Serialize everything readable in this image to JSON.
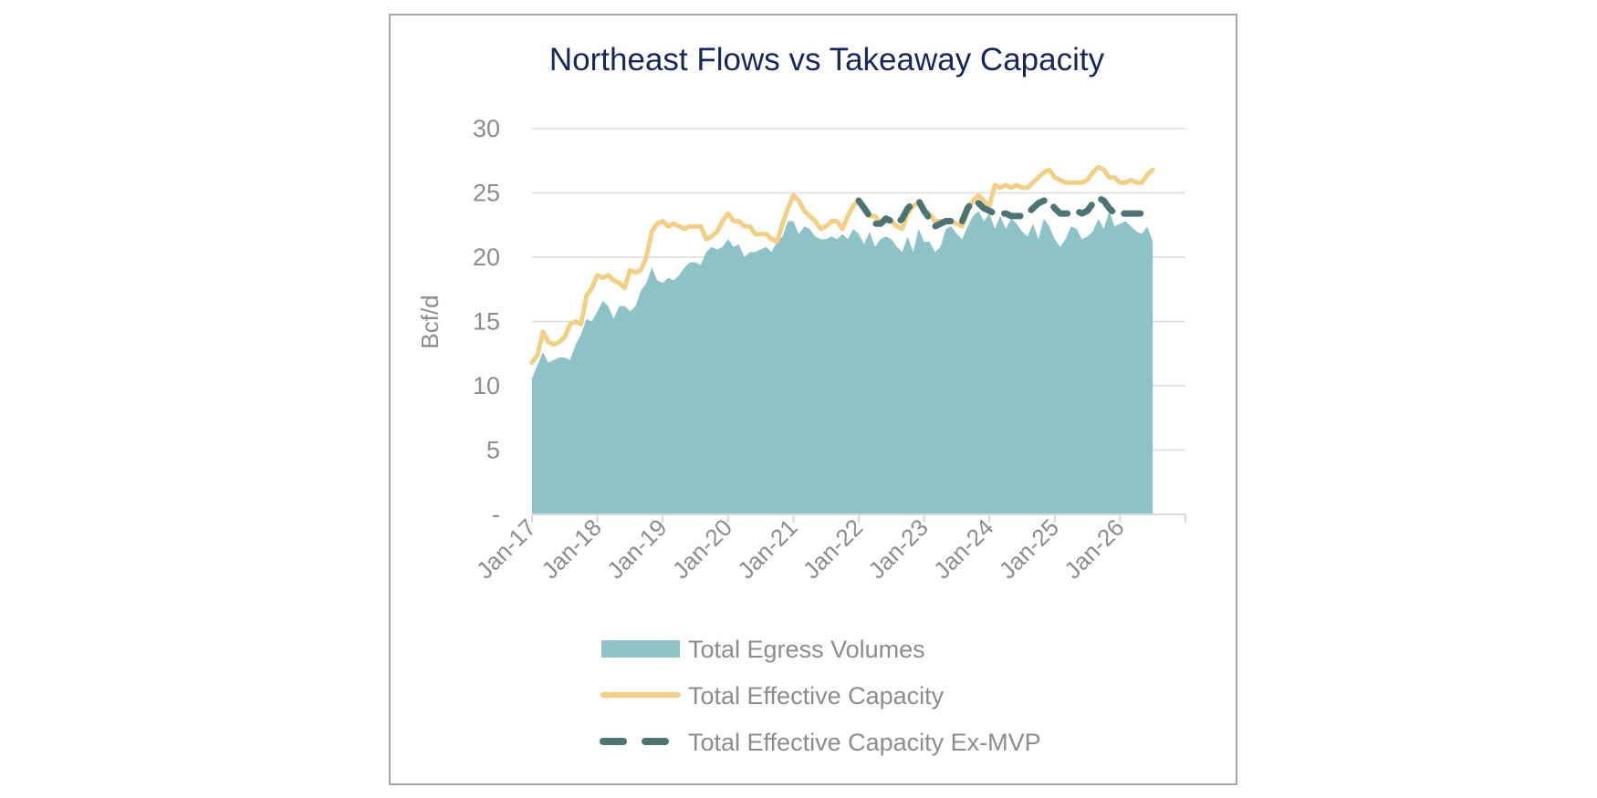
{
  "chart_data": {
    "type": "area",
    "title": "Northeast Flows vs Takeaway Capacity",
    "ylabel": "Bcf/d",
    "xlabel": "",
    "ylim": [
      0,
      30
    ],
    "xlim": [
      "2017-01",
      "2027-01"
    ],
    "yticks": [
      0,
      5,
      10,
      15,
      20,
      25,
      30
    ],
    "ytick_labels": [
      "-",
      "5",
      "10",
      "15",
      "20",
      "25",
      "30"
    ],
    "xtick_labels": [
      "Jan-17",
      "Jan-18",
      "Jan-19",
      "Jan-20",
      "Jan-21",
      "Jan-22",
      "Jan-23",
      "Jan-24",
      "Jan-25",
      "Jan-26"
    ],
    "grid": true,
    "legend_position": "bottom",
    "series": [
      {
        "name": "Total Egress Volumes",
        "type": "area",
        "color": "#8DC3C7",
        "points": [
          [
            "2017-01",
            10.6
          ],
          [
            "2017-02",
            11.6
          ],
          [
            "2017-03",
            12.6
          ],
          [
            "2017-04",
            11.8
          ],
          [
            "2017-05",
            12.0
          ],
          [
            "2017-06",
            12.2
          ],
          [
            "2017-07",
            12.2
          ],
          [
            "2017-08",
            12.0
          ],
          [
            "2017-09",
            13.2
          ],
          [
            "2017-10",
            14.0
          ],
          [
            "2017-11",
            15.2
          ],
          [
            "2017-12",
            15.0
          ],
          [
            "2018-01",
            15.8
          ],
          [
            "2018-02",
            16.6
          ],
          [
            "2018-03",
            16.2
          ],
          [
            "2018-04",
            15.2
          ],
          [
            "2018-05",
            16.2
          ],
          [
            "2018-06",
            16.2
          ],
          [
            "2018-07",
            15.8
          ],
          [
            "2018-08",
            16.2
          ],
          [
            "2018-09",
            17.4
          ],
          [
            "2018-10",
            18.0
          ],
          [
            "2018-11",
            19.2
          ],
          [
            "2018-12",
            18.2
          ],
          [
            "2019-01",
            18.0
          ],
          [
            "2019-02",
            18.4
          ],
          [
            "2019-03",
            18.2
          ],
          [
            "2019-04",
            18.6
          ],
          [
            "2019-05",
            19.2
          ],
          [
            "2019-06",
            19.6
          ],
          [
            "2019-07",
            19.6
          ],
          [
            "2019-08",
            19.4
          ],
          [
            "2019-09",
            20.4
          ],
          [
            "2019-10",
            20.8
          ],
          [
            "2019-11",
            20.6
          ],
          [
            "2019-12",
            20.8
          ],
          [
            "2020-01",
            21.4
          ],
          [
            "2020-02",
            20.8
          ],
          [
            "2020-03",
            21.0
          ],
          [
            "2020-04",
            20.0
          ],
          [
            "2020-05",
            20.4
          ],
          [
            "2020-06",
            20.4
          ],
          [
            "2020-07",
            20.6
          ],
          [
            "2020-08",
            20.8
          ],
          [
            "2020-09",
            20.4
          ],
          [
            "2020-10",
            21.2
          ],
          [
            "2020-11",
            21.6
          ],
          [
            "2020-12",
            22.8
          ],
          [
            "2021-01",
            22.8
          ],
          [
            "2021-02",
            21.8
          ],
          [
            "2021-03",
            22.4
          ],
          [
            "2021-04",
            22.2
          ],
          [
            "2021-05",
            21.6
          ],
          [
            "2021-06",
            21.4
          ],
          [
            "2021-07",
            21.4
          ],
          [
            "2021-08",
            21.6
          ],
          [
            "2021-09",
            21.4
          ],
          [
            "2021-10",
            21.8
          ],
          [
            "2021-11",
            21.4
          ],
          [
            "2021-12",
            22.2
          ],
          [
            "2022-01",
            21.8
          ],
          [
            "2022-02",
            21.0
          ],
          [
            "2022-03",
            22.0
          ],
          [
            "2022-04",
            20.8
          ],
          [
            "2022-05",
            21.4
          ],
          [
            "2022-06",
            21.6
          ],
          [
            "2022-07",
            21.4
          ],
          [
            "2022-08",
            20.8
          ],
          [
            "2022-09",
            20.4
          ],
          [
            "2022-10",
            21.6
          ],
          [
            "2022-11",
            20.4
          ],
          [
            "2022-12",
            22.2
          ],
          [
            "2023-01",
            21.2
          ],
          [
            "2023-02",
            21.2
          ],
          [
            "2023-03",
            20.4
          ],
          [
            "2023-04",
            20.8
          ],
          [
            "2023-05",
            22.2
          ],
          [
            "2023-06",
            22.4
          ],
          [
            "2023-07",
            21.8
          ],
          [
            "2023-08",
            21.4
          ],
          [
            "2023-09",
            22.4
          ],
          [
            "2023-10",
            23.2
          ],
          [
            "2023-11",
            23.6
          ],
          [
            "2023-12",
            22.8
          ],
          [
            "2024-01",
            23.4
          ],
          [
            "2024-02",
            22.2
          ],
          [
            "2024-03",
            23.2
          ],
          [
            "2024-04",
            22.2
          ],
          [
            "2024-05",
            23.0
          ],
          [
            "2024-06",
            22.6
          ],
          [
            "2024-07",
            22.0
          ],
          [
            "2024-08",
            21.6
          ],
          [
            "2024-09",
            22.6
          ],
          [
            "2024-10",
            21.4
          ],
          [
            "2024-11",
            23.0
          ],
          [
            "2024-12",
            22.4
          ],
          [
            "2025-01",
            21.4
          ],
          [
            "2025-02",
            20.8
          ],
          [
            "2025-03",
            21.4
          ],
          [
            "2025-04",
            22.4
          ],
          [
            "2025-05",
            22.2
          ],
          [
            "2025-06",
            21.4
          ],
          [
            "2025-07",
            21.6
          ],
          [
            "2025-08",
            22.0
          ],
          [
            "2025-09",
            23.0
          ],
          [
            "2025-10",
            22.2
          ],
          [
            "2025-11",
            23.6
          ],
          [
            "2025-12",
            22.4
          ],
          [
            "2026-01",
            22.6
          ],
          [
            "2026-02",
            22.8
          ],
          [
            "2026-03",
            22.4
          ],
          [
            "2026-04",
            22.0
          ],
          [
            "2026-05",
            21.8
          ],
          [
            "2026-06",
            22.4
          ],
          [
            "2026-07",
            21.2
          ]
        ]
      },
      {
        "name": "Total Effective Capacity",
        "type": "line",
        "color": "#F2CF82",
        "points": [
          [
            "2017-01",
            11.8
          ],
          [
            "2017-02",
            12.4
          ],
          [
            "2017-03",
            14.2
          ],
          [
            "2017-04",
            13.4
          ],
          [
            "2017-05",
            13.2
          ],
          [
            "2017-06",
            13.4
          ],
          [
            "2017-07",
            13.8
          ],
          [
            "2017-08",
            14.8
          ],
          [
            "2017-09",
            15.0
          ],
          [
            "2017-10",
            14.8
          ],
          [
            "2017-11",
            17.0
          ],
          [
            "2017-12",
            17.6
          ],
          [
            "2018-01",
            18.6
          ],
          [
            "2018-02",
            18.4
          ],
          [
            "2018-03",
            18.6
          ],
          [
            "2018-04",
            18.2
          ],
          [
            "2018-05",
            18.0
          ],
          [
            "2018-06",
            17.6
          ],
          [
            "2018-07",
            19.0
          ],
          [
            "2018-08",
            18.8
          ],
          [
            "2018-09",
            19.0
          ],
          [
            "2018-10",
            20.0
          ],
          [
            "2018-11",
            22.0
          ],
          [
            "2018-12",
            22.6
          ],
          [
            "2019-01",
            22.8
          ],
          [
            "2019-02",
            22.4
          ],
          [
            "2019-03",
            22.6
          ],
          [
            "2019-04",
            22.4
          ],
          [
            "2019-05",
            22.2
          ],
          [
            "2019-06",
            22.4
          ],
          [
            "2019-07",
            22.4
          ],
          [
            "2019-08",
            22.4
          ],
          [
            "2019-09",
            21.4
          ],
          [
            "2019-10",
            21.6
          ],
          [
            "2019-11",
            22.0
          ],
          [
            "2019-12",
            22.8
          ],
          [
            "2020-01",
            23.4
          ],
          [
            "2020-02",
            22.8
          ],
          [
            "2020-03",
            22.8
          ],
          [
            "2020-04",
            22.4
          ],
          [
            "2020-05",
            22.4
          ],
          [
            "2020-06",
            21.8
          ],
          [
            "2020-07",
            21.8
          ],
          [
            "2020-08",
            21.8
          ],
          [
            "2020-09",
            21.4
          ],
          [
            "2020-10",
            21.2
          ],
          [
            "2020-11",
            22.6
          ],
          [
            "2020-12",
            23.8
          ],
          [
            "2021-01",
            24.8
          ],
          [
            "2021-02",
            24.4
          ],
          [
            "2021-03",
            23.6
          ],
          [
            "2021-04",
            23.2
          ],
          [
            "2021-05",
            22.8
          ],
          [
            "2021-06",
            22.2
          ],
          [
            "2021-07",
            22.4
          ],
          [
            "2021-08",
            22.8
          ],
          [
            "2021-09",
            22.8
          ],
          [
            "2021-10",
            22.2
          ],
          [
            "2021-11",
            23.2
          ],
          [
            "2021-12",
            24.0
          ],
          [
            "2022-01",
            24.4
          ],
          [
            "2022-02",
            23.8
          ],
          [
            "2022-03",
            23.2
          ],
          [
            "2022-04",
            23.2
          ],
          [
            "2022-05",
            22.6
          ],
          [
            "2022-06",
            22.8
          ],
          [
            "2022-07",
            22.8
          ],
          [
            "2022-08",
            22.4
          ],
          [
            "2022-09",
            22.2
          ],
          [
            "2022-10",
            23.4
          ],
          [
            "2022-11",
            24.0
          ],
          [
            "2022-12",
            24.2
          ],
          [
            "2023-01",
            23.6
          ],
          [
            "2023-02",
            23.4
          ],
          [
            "2023-03",
            22.8
          ],
          [
            "2023-04",
            22.8
          ],
          [
            "2023-05",
            22.8
          ],
          [
            "2023-06",
            22.8
          ],
          [
            "2023-07",
            22.6
          ],
          [
            "2023-08",
            22.4
          ],
          [
            "2023-09",
            23.6
          ],
          [
            "2023-10",
            24.4
          ],
          [
            "2023-11",
            24.8
          ],
          [
            "2023-12",
            24.4
          ],
          [
            "2024-01",
            24.0
          ],
          [
            "2024-02",
            25.6
          ],
          [
            "2024-03",
            25.4
          ],
          [
            "2024-04",
            25.6
          ],
          [
            "2024-05",
            25.4
          ],
          [
            "2024-06",
            25.6
          ],
          [
            "2024-07",
            25.4
          ],
          [
            "2024-08",
            25.4
          ],
          [
            "2024-09",
            25.8
          ],
          [
            "2024-10",
            26.2
          ],
          [
            "2024-11",
            26.6
          ],
          [
            "2024-12",
            26.8
          ],
          [
            "2025-01",
            26.2
          ],
          [
            "2025-02",
            26.0
          ],
          [
            "2025-03",
            25.8
          ],
          [
            "2025-04",
            25.8
          ],
          [
            "2025-05",
            25.8
          ],
          [
            "2025-06",
            25.8
          ],
          [
            "2025-07",
            26.0
          ],
          [
            "2025-08",
            26.6
          ],
          [
            "2025-09",
            27.0
          ],
          [
            "2025-10",
            26.8
          ],
          [
            "2025-11",
            26.2
          ],
          [
            "2025-12",
            26.2
          ],
          [
            "2026-01",
            25.8
          ],
          [
            "2026-02",
            25.8
          ],
          [
            "2026-03",
            26.0
          ],
          [
            "2026-04",
            25.8
          ],
          [
            "2026-05",
            25.8
          ],
          [
            "2026-06",
            26.4
          ],
          [
            "2026-07",
            26.8
          ]
        ]
      },
      {
        "name": "Total Effective Capacity Ex-MVP",
        "type": "line",
        "style": "dashed",
        "color": "#4E7373",
        "points": [
          [
            "2022-01",
            24.4
          ],
          [
            "2022-02",
            23.8
          ],
          [
            "2022-03",
            23.2
          ],
          [
            "2022-04",
            22.6
          ],
          [
            "2022-05",
            22.6
          ],
          [
            "2022-06",
            23.0
          ],
          [
            "2022-07",
            22.8
          ],
          [
            "2022-08",
            22.6
          ],
          [
            "2022-09",
            23.0
          ],
          [
            "2022-10",
            23.8
          ],
          [
            "2022-11",
            24.2
          ],
          [
            "2022-12",
            24.4
          ],
          [
            "2023-01",
            23.6
          ],
          [
            "2023-02",
            23.0
          ],
          [
            "2023-03",
            22.4
          ],
          [
            "2023-04",
            22.6
          ],
          [
            "2023-05",
            22.8
          ],
          [
            "2023-06",
            22.8
          ],
          [
            "2023-07",
            22.6
          ],
          [
            "2023-08",
            22.8
          ],
          [
            "2023-09",
            23.8
          ],
          [
            "2023-10",
            24.4
          ],
          [
            "2023-11",
            24.2
          ],
          [
            "2023-12",
            23.8
          ],
          [
            "2024-01",
            23.6
          ],
          [
            "2024-02",
            23.4
          ],
          [
            "2024-03",
            23.4
          ],
          [
            "2024-04",
            23.4
          ],
          [
            "2024-05",
            23.2
          ],
          [
            "2024-06",
            23.2
          ],
          [
            "2024-07",
            23.2
          ],
          [
            "2024-08",
            23.4
          ],
          [
            "2024-09",
            23.8
          ],
          [
            "2024-10",
            24.2
          ],
          [
            "2024-11",
            24.4
          ],
          [
            "2024-12",
            24.4
          ],
          [
            "2025-01",
            23.8
          ],
          [
            "2025-02",
            23.4
          ],
          [
            "2025-03",
            23.4
          ],
          [
            "2025-04",
            23.4
          ],
          [
            "2025-05",
            23.6
          ],
          [
            "2025-06",
            23.4
          ],
          [
            "2025-07",
            23.6
          ],
          [
            "2025-08",
            24.2
          ],
          [
            "2025-09",
            24.6
          ],
          [
            "2025-10",
            24.4
          ],
          [
            "2025-11",
            23.8
          ],
          [
            "2025-12",
            23.4
          ],
          [
            "2026-01",
            23.4
          ],
          [
            "2026-02",
            23.4
          ],
          [
            "2026-03",
            23.4
          ],
          [
            "2026-04",
            23.4
          ],
          [
            "2026-05",
            23.4
          ],
          [
            "2026-06",
            23.4
          ],
          [
            "2026-07",
            23.4
          ]
        ]
      }
    ]
  }
}
